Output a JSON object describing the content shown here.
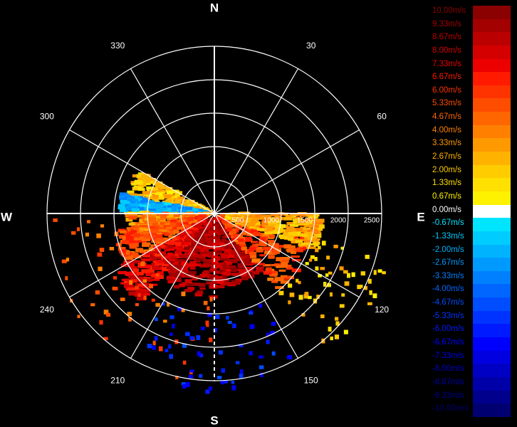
{
  "chart_data": {
    "type": "heatmap",
    "projection": "polar",
    "title": "",
    "compass": {
      "N": "N",
      "E": "E",
      "S": "S",
      "W": "W"
    },
    "angle_labels": [
      "30",
      "60",
      "120",
      "150",
      "210",
      "240",
      "300",
      "330"
    ],
    "angle_values": [
      30,
      60,
      120,
      150,
      210,
      240,
      300,
      330
    ],
    "radial_ticks": [
      "500",
      "1000",
      "1500",
      "2000",
      "2500"
    ],
    "radial_values": [
      500,
      1000,
      1500,
      2000,
      2500
    ],
    "rmax": 2500,
    "spokes_deg": [
      0,
      30,
      60,
      90,
      120,
      150,
      180,
      210,
      240,
      270,
      300,
      330
    ],
    "grid": true,
    "sector_deg": [
      90,
      270
    ],
    "legend_placement": "right",
    "legend": [
      {
        "label": "10.00m/s",
        "color": "#8b0000",
        "value": 10.0
      },
      {
        "label": "9.33m/s",
        "color": "#a30000",
        "value": 9.33
      },
      {
        "label": "8.67m/s",
        "color": "#bb0000",
        "value": 8.67
      },
      {
        "label": "8.00m/s",
        "color": "#d40000",
        "value": 8.0
      },
      {
        "label": "7.33m/s",
        "color": "#ec0000",
        "value": 7.33
      },
      {
        "label": "6.67m/s",
        "color": "#ff1a00",
        "value": 6.67
      },
      {
        "label": "6.00m/s",
        "color": "#ff3300",
        "value": 6.0
      },
      {
        "label": "5.33m/s",
        "color": "#ff4d00",
        "value": 5.33
      },
      {
        "label": "4.67m/s",
        "color": "#ff6600",
        "value": 4.67
      },
      {
        "label": "4.00m/s",
        "color": "#ff8000",
        "value": 4.0
      },
      {
        "label": "3.33m/s",
        "color": "#ff9900",
        "value": 3.33
      },
      {
        "label": "2.67m/s",
        "color": "#ffb300",
        "value": 2.67
      },
      {
        "label": "2.00m/s",
        "color": "#ffcc00",
        "value": 2.0
      },
      {
        "label": "1.33m/s",
        "color": "#ffe000",
        "value": 1.33
      },
      {
        "label": "0.67m/s",
        "color": "#fff200",
        "value": 0.67
      },
      {
        "label": "0.00m/s",
        "color": "#ffffff",
        "value": 0.0
      },
      {
        "label": "-0.67m/s",
        "color": "#00e5ff",
        "value": -0.67
      },
      {
        "label": "-1.33m/s",
        "color": "#00ccff",
        "value": -1.33
      },
      {
        "label": "-2.00m/s",
        "color": "#00b3ff",
        "value": -2.0
      },
      {
        "label": "-2.67m/s",
        "color": "#009aff",
        "value": -2.67
      },
      {
        "label": "-3.33m/s",
        "color": "#0080ff",
        "value": -3.33
      },
      {
        "label": "-4.00m/s",
        "color": "#0066ff",
        "value": -4.0
      },
      {
        "label": "-4.67m/s",
        "color": "#004dff",
        "value": -4.67
      },
      {
        "label": "-5.33m/s",
        "color": "#0033ff",
        "value": -5.33
      },
      {
        "label": "-6.00m/s",
        "color": "#001aff",
        "value": -6.0
      },
      {
        "label": "-6.67m/s",
        "color": "#0000ff",
        "value": -6.67
      },
      {
        "label": "-7.33m/s",
        "color": "#0000e0",
        "value": -7.33
      },
      {
        "label": "-8.00m/s",
        "color": "#0000c4",
        "value": -8.0
      },
      {
        "label": "-8.67m/s",
        "color": "#0000a8",
        "value": -8.67
      },
      {
        "label": "-9.33m/s",
        "color": "#00008c",
        "value": -9.33
      },
      {
        "label": "-10.00m/s",
        "color": "#000070",
        "value": -10.0
      }
    ],
    "regions": [
      {
        "az": [
          270,
          300
        ],
        "range": [
          80,
          1300
        ],
        "value": 2.2
      },
      {
        "az": [
          272,
          282
        ],
        "range": [
          100,
          1400
        ],
        "value": -2.2
      },
      {
        "az": [
          250,
          270
        ],
        "range": [
          100,
          1300
        ],
        "value": 3.8
      },
      {
        "az": [
          240,
          260
        ],
        "range": [
          150,
          1500
        ],
        "value": 5.5
      },
      {
        "az": [
          220,
          240
        ],
        "range": [
          150,
          1700
        ],
        "value": 7.5
      },
      {
        "az": [
          180,
          220
        ],
        "range": [
          80,
          1250
        ],
        "value": 8.8
      },
      {
        "az": [
          140,
          180
        ],
        "range": [
          80,
          1100
        ],
        "value": 8.8
      },
      {
        "az": [
          100,
          140
        ],
        "range": [
          80,
          1500
        ],
        "value": 5.5
      },
      {
        "az": [
          90,
          110
        ],
        "range": [
          200,
          1600
        ],
        "value": 2.8
      },
      {
        "az": [
          180,
          270
        ],
        "range": [
          1250,
          2600
        ],
        "value": 5.0
      },
      {
        "az": [
          150,
          210
        ],
        "range": [
          1500,
          2700
        ],
        "value": -6.0
      },
      {
        "az": [
          105,
          140
        ],
        "range": [
          1500,
          2700
        ],
        "value": 2.0
      }
    ]
  }
}
